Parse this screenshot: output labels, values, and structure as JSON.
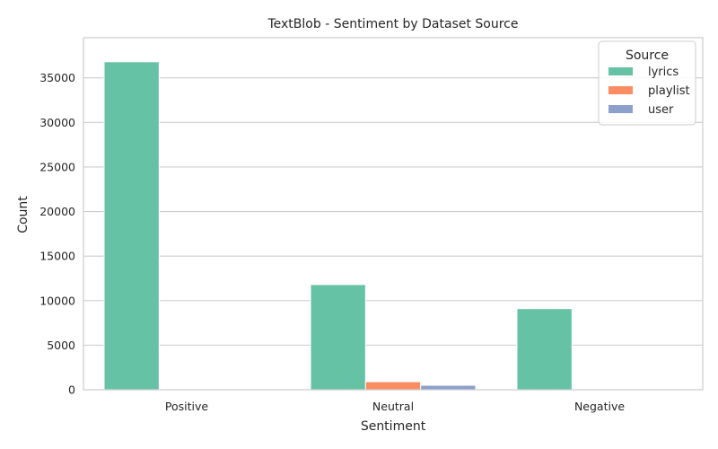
{
  "chart_data": {
    "type": "bar",
    "title": "TextBlob - Sentiment by Dataset Source",
    "xlabel": "Sentiment",
    "ylabel": "Count",
    "categories": [
      "Positive",
      "Neutral",
      "Negative"
    ],
    "series": [
      {
        "name": "lyrics",
        "values": [
          36800,
          11800,
          9100
        ],
        "color": "#66c2a5"
      },
      {
        "name": "playlist",
        "values": [
          0,
          900,
          0
        ],
        "color": "#fc8d62"
      },
      {
        "name": "user",
        "values": [
          0,
          500,
          0
        ],
        "color": "#8da0cb"
      }
    ],
    "ylim": [
      0,
      39500
    ],
    "yticks": [
      0,
      5000,
      10000,
      15000,
      20000,
      25000,
      30000,
      35000
    ],
    "grid": true,
    "legend_title": "Source",
    "legend_placement": "top-right"
  }
}
